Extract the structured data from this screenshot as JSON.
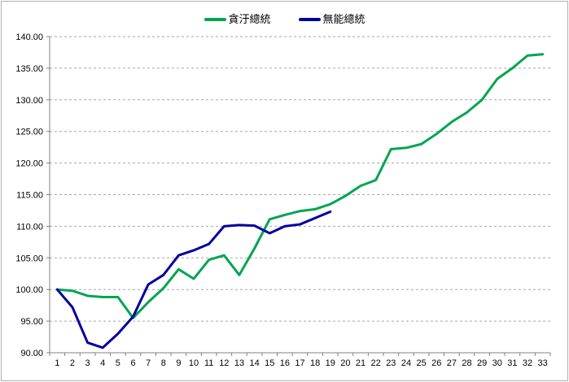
{
  "legend": {
    "items": [
      {
        "label": "貪汙總統",
        "color": "#00A550"
      },
      {
        "label": "無能總統",
        "color": "#0000A0"
      }
    ]
  },
  "axes": {
    "y_min": 90,
    "y_max": 140,
    "y_step": 5,
    "y_label_decimals": 2,
    "x_min_label": "1",
    "x_max_label": "33"
  },
  "chart_data": {
    "type": "line",
    "title": "",
    "xlabel": "",
    "ylabel": "",
    "x": [
      1,
      2,
      3,
      4,
      5,
      6,
      7,
      8,
      9,
      10,
      11,
      12,
      13,
      14,
      15,
      16,
      17,
      18,
      19,
      20,
      21,
      22,
      23,
      24,
      25,
      26,
      27,
      28,
      29,
      30,
      31,
      32,
      33
    ],
    "series": [
      {
        "name": "貪汙總統",
        "color": "#00A550",
        "values": [
          100.0,
          99.8,
          99.0,
          98.8,
          98.8,
          95.5,
          98.0,
          100.2,
          103.2,
          101.7,
          104.7,
          105.4,
          102.3,
          106.5,
          111.1,
          111.8,
          112.4,
          112.7,
          113.5,
          114.8,
          116.4,
          117.3,
          122.2,
          122.4,
          123.0,
          124.6,
          126.5,
          128.0,
          130.0,
          133.3,
          135.0,
          137.0,
          137.2
        ]
      },
      {
        "name": "無能總統",
        "color": "#0000A0",
        "values": [
          100.0,
          97.2,
          91.6,
          90.8,
          93.0,
          95.7,
          100.8,
          102.3,
          105.4,
          106.2,
          107.2,
          110.0,
          110.2,
          110.1,
          108.9,
          110.0,
          110.3,
          111.3,
          112.3
        ]
      }
    ],
    "ylim": [
      90,
      140
    ],
    "y_tick_step": 5,
    "grid": "horizontal-dashed",
    "legend_position": "top-center"
  }
}
